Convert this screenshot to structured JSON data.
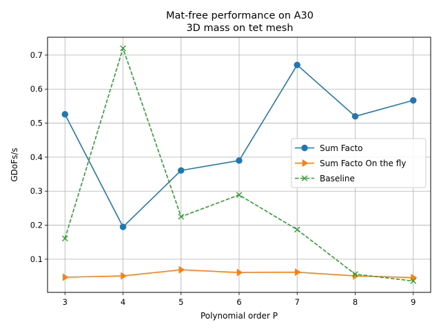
{
  "chart_data": {
    "type": "line",
    "title": "Mat-free performance on A30",
    "subtitle": "3D mass on tet mesh",
    "xlabel": "Polynomial order P",
    "ylabel": "GDoFs/s",
    "x": [
      3,
      4,
      5,
      6,
      7,
      8,
      9
    ],
    "xlim": [
      2.7,
      9.3
    ],
    "ylim": [
      0.0025,
      0.7525
    ],
    "xticks": [
      3,
      4,
      5,
      6,
      7,
      8,
      9
    ],
    "yticks": [
      0.1,
      0.2,
      0.3,
      0.4,
      0.5,
      0.6,
      0.7
    ],
    "grid": true,
    "legend_position": "center-right",
    "series": [
      {
        "name": "Sum Facto",
        "values": [
          0.526,
          0.195,
          0.361,
          0.39,
          0.671,
          0.52,
          0.567
        ],
        "color": "#1f77b4",
        "marker": "circle",
        "linestyle": "solid"
      },
      {
        "name": "Sum Facto On the fly",
        "values": [
          0.047,
          0.051,
          0.069,
          0.061,
          0.062,
          0.051,
          0.046
        ],
        "color": "#ff7f0e",
        "marker": "triangle-right",
        "linestyle": "solid"
      },
      {
        "name": "Baseline",
        "values": [
          0.161,
          0.72,
          0.225,
          0.289,
          0.187,
          0.056,
          0.036
        ],
        "color": "#2ca02c",
        "marker": "x",
        "linestyle": "dashed"
      }
    ]
  }
}
